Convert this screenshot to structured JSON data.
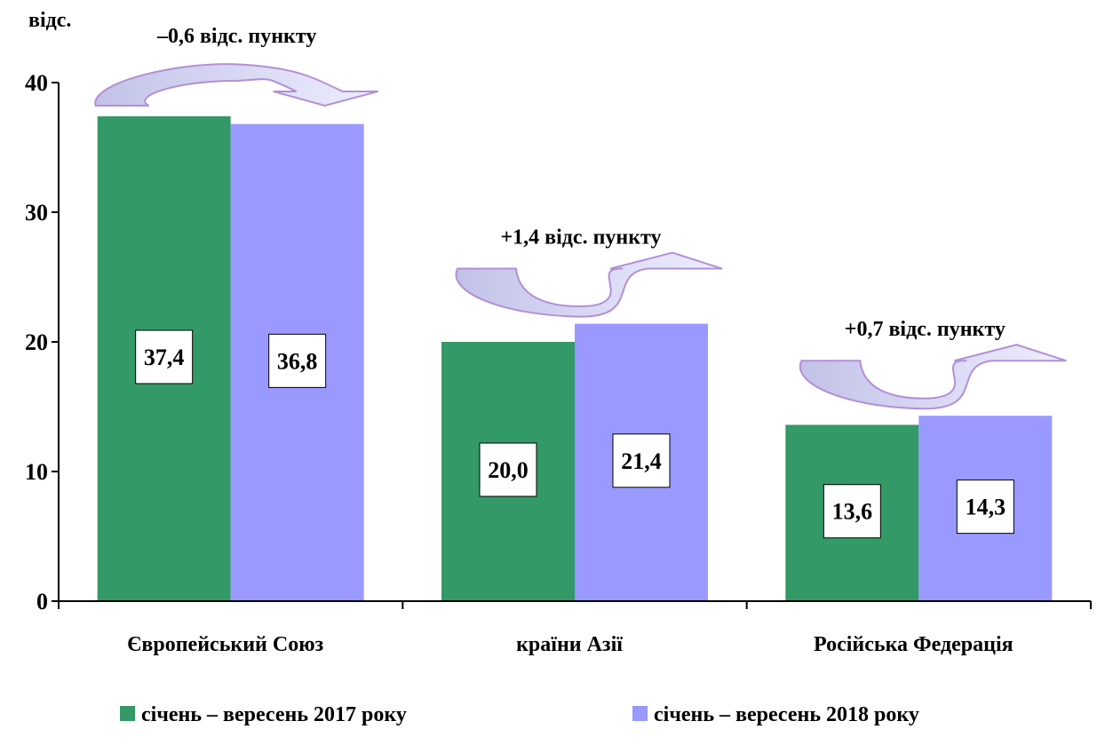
{
  "chart_data": {
    "type": "bar",
    "ylabel": "відс.",
    "ylim": [
      0,
      40
    ],
    "yticks": [
      0,
      10,
      20,
      30,
      40
    ],
    "categories": [
      "Європейський Союз",
      "країни Азії",
      "Російська Федерація"
    ],
    "series": [
      {
        "name": "січень – вересень 2017 року",
        "color": "#339966",
        "values": [
          37.4,
          20.0,
          13.6
        ],
        "labels": [
          "37,4",
          "20,0",
          "13,6"
        ]
      },
      {
        "name": "січень – вересень 2018 року",
        "color": "#9999ff",
        "values": [
          36.8,
          21.4,
          14.3
        ],
        "labels": [
          "36,8",
          "21,4",
          "14,3"
        ]
      }
    ],
    "annotations": [
      "–0,6 відс. пункту",
      "+1,4 відс. пункту",
      "+0,7 відс. пункту"
    ],
    "grid": false,
    "legend": "bottom"
  }
}
